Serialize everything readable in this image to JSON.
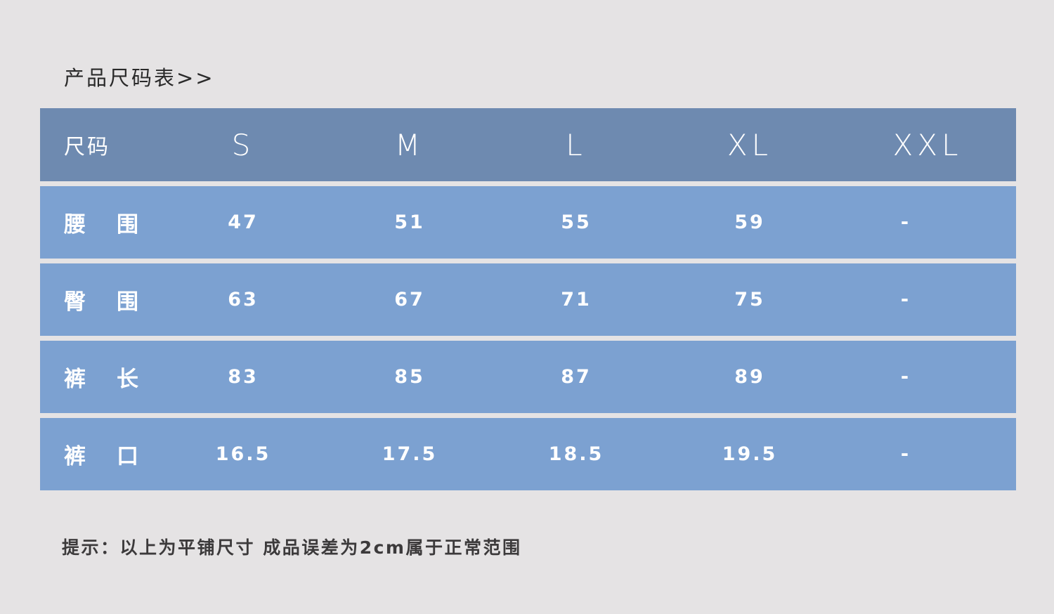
{
  "title": "产品尺码表>>",
  "table": {
    "header": {
      "label": "尺码",
      "sizes": [
        "S",
        "M",
        "L",
        "XL",
        "XXL"
      ]
    },
    "rows": [
      {
        "label_a": "腰",
        "label_b": "围",
        "values": [
          "47",
          "51",
          "55",
          "59",
          "-"
        ]
      },
      {
        "label_a": "臀",
        "label_b": "围",
        "values": [
          "63",
          "67",
          "71",
          "75",
          "-"
        ]
      },
      {
        "label_a": "裤",
        "label_b": "长",
        "values": [
          "83",
          "85",
          "87",
          "89",
          "-"
        ]
      },
      {
        "label_a": "裤",
        "label_b": "口",
        "values": [
          "16.5",
          "17.5",
          "18.5",
          "19.5",
          "-"
        ]
      }
    ]
  },
  "note": "提示：以上为平铺尺寸 成品误差为2cm属于正常范围",
  "colors": {
    "background": "#e5e3e4",
    "header": "#6e8ab0",
    "row": "#7ca1d1",
    "text": "#ffffff"
  }
}
